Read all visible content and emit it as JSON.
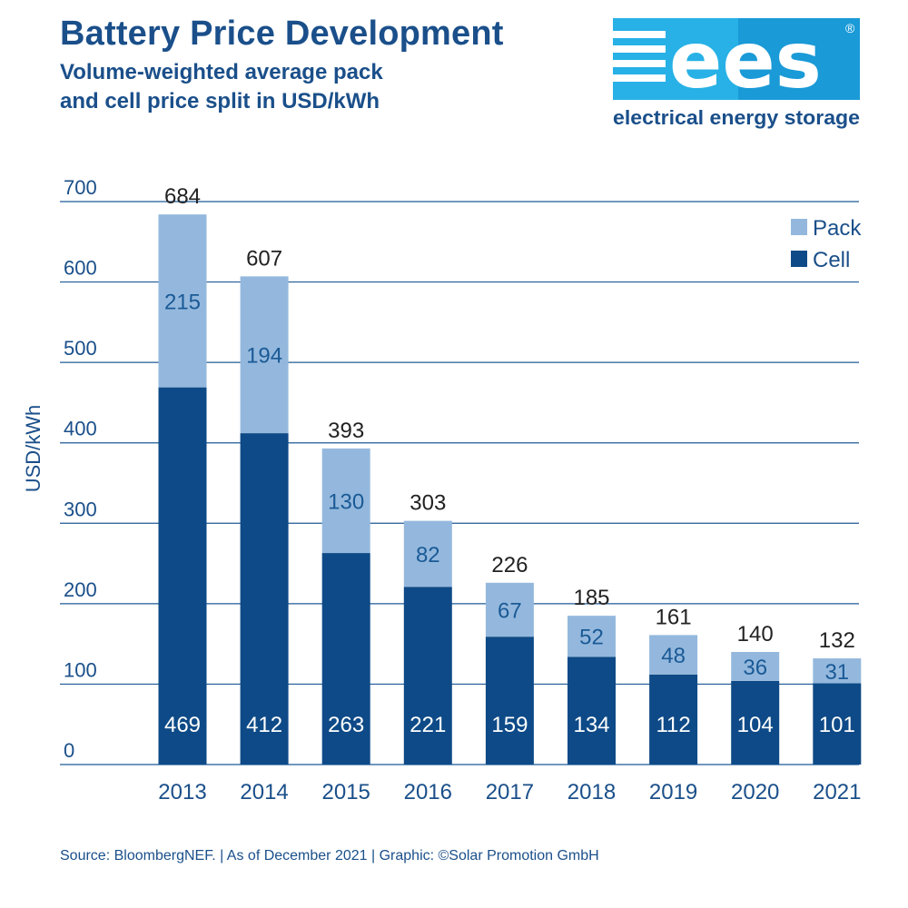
{
  "header": {
    "title": "Battery Price Development",
    "subtitle_line1": "Volume-weighted average pack",
    "subtitle_line2": "and cell price split in USD/kWh"
  },
  "logo": {
    "text": "ees",
    "registered": "®",
    "tagline": "electrical energy storage"
  },
  "footer": {
    "source": "Source: BloombergNEF. | As of December 2021 | Graphic: ©Solar Promotion GmbH"
  },
  "colors": {
    "title": "#1a4f8a",
    "cell": "#0e4a87",
    "pack": "#94b8dd",
    "grid": "#1f5a96",
    "logo_bg": "#1a9ad7"
  },
  "chart_data": {
    "type": "bar",
    "stacked": true,
    "categories": [
      "2013",
      "2014",
      "2015",
      "2016",
      "2017",
      "2018",
      "2019",
      "2020",
      "2021"
    ],
    "series": [
      {
        "name": "Cell",
        "values": [
          469,
          412,
          263,
          221,
          159,
          134,
          112,
          104,
          101
        ]
      },
      {
        "name": "Pack",
        "values": [
          215,
          194,
          130,
          82,
          67,
          52,
          48,
          36,
          31
        ]
      }
    ],
    "totals": [
      684,
      607,
      393,
      303,
      226,
      185,
      161,
      140,
      132
    ],
    "ylabel": "USD/kWh",
    "ylim": [
      0,
      700
    ],
    "yticks": [
      0,
      100,
      200,
      300,
      400,
      500,
      600,
      700
    ],
    "grid": true,
    "legend_position": "top-right"
  }
}
